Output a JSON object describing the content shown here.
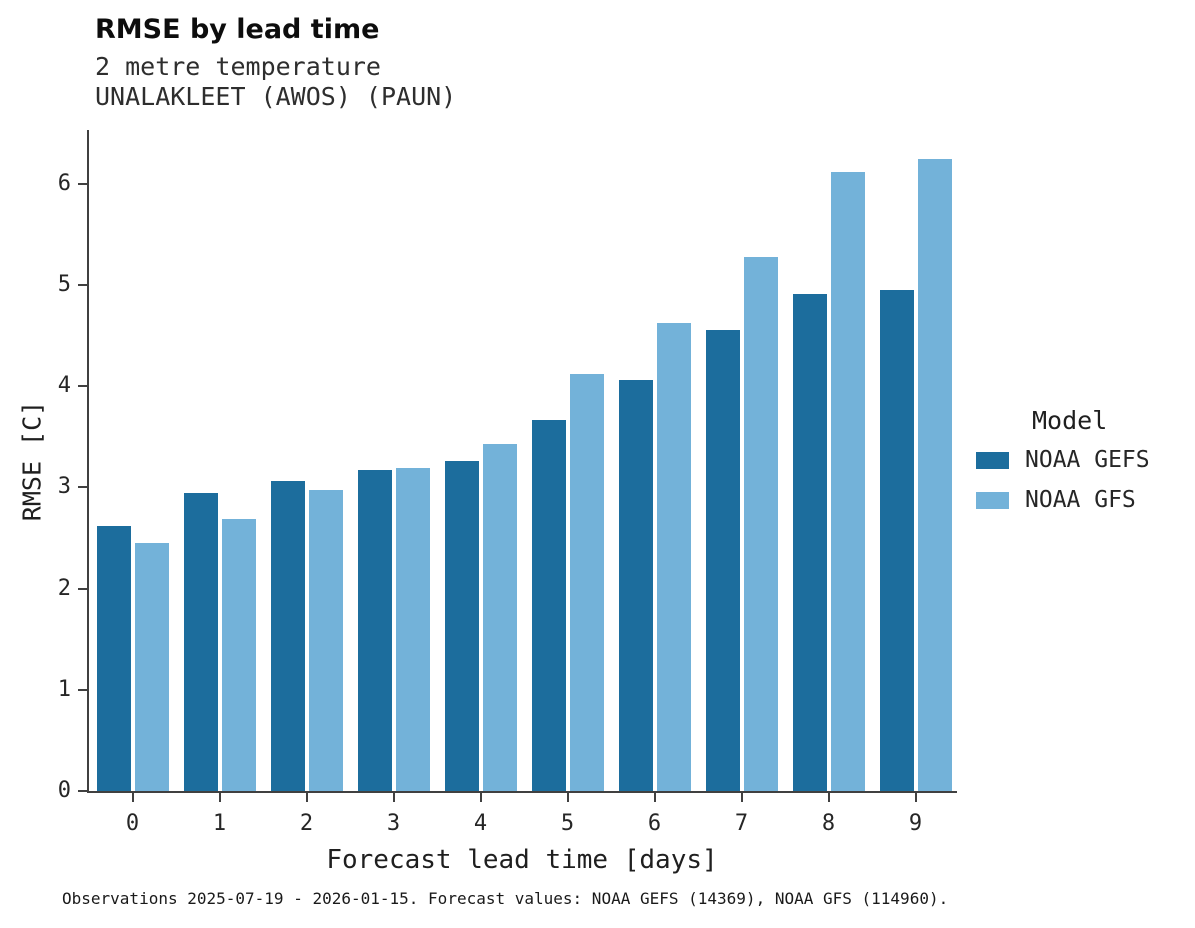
{
  "chart_data": {
    "type": "bar",
    "title": "RMSE by lead time",
    "subtitle": [
      "2 metre temperature",
      "UNALAKLEET (AWOS) (PAUN)"
    ],
    "xlabel": "Forecast lead time [days]",
    "ylabel": "RMSE [C]",
    "categories": [
      "0",
      "1",
      "2",
      "3",
      "4",
      "5",
      "6",
      "7",
      "8",
      "9"
    ],
    "series": [
      {
        "name": "NOAA GEFS",
        "color": "#1c6d9d",
        "values": [
          2.62,
          2.94,
          3.06,
          3.17,
          3.26,
          3.67,
          4.06,
          4.55,
          4.91,
          4.95
        ]
      },
      {
        "name": "NOAA GFS",
        "color": "#73b2d9",
        "values": [
          2.45,
          2.69,
          2.97,
          3.19,
          3.43,
          4.12,
          4.62,
          5.28,
          6.12,
          6.24
        ]
      }
    ],
    "ylim": [
      0,
      6.55
    ],
    "yticks": [
      0,
      1,
      2,
      3,
      4,
      5,
      6
    ],
    "grid": false,
    "legend_title": "Model",
    "legend_position": "right",
    "caption": "Observations 2025-07-19 - 2026-01-15. Forecast values: NOAA GEFS (14369), NOAA GFS (114960)."
  }
}
